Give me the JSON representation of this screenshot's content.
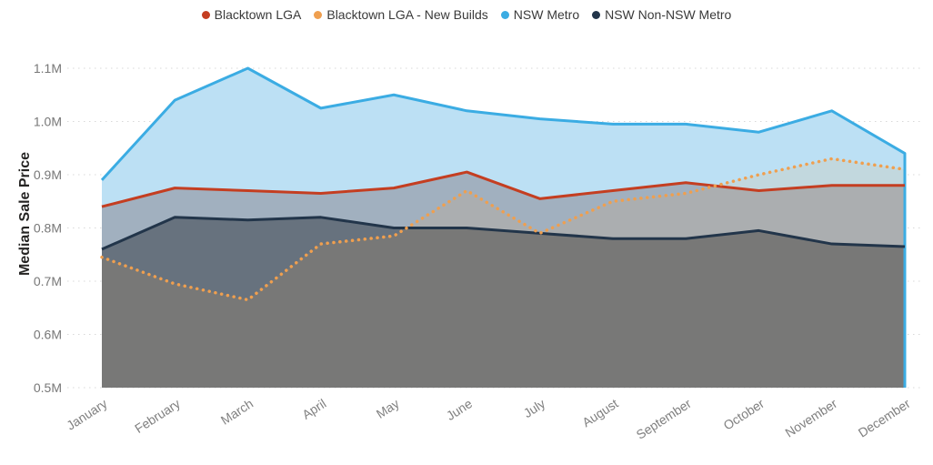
{
  "chart_data": {
    "type": "area",
    "title": "",
    "ylabel": "Median Sale Price",
    "legend_position": "top",
    "grid": "horizontal-dotted",
    "ylim": [
      0.5,
      1.1
    ],
    "y_ticks": [
      {
        "value": 0.5,
        "label": "0.5M"
      },
      {
        "value": 0.6,
        "label": "0.6M"
      },
      {
        "value": 0.7,
        "label": "0.7M"
      },
      {
        "value": 0.8,
        "label": "0.8M"
      },
      {
        "value": 0.9,
        "label": "0.9M"
      },
      {
        "value": 1.0,
        "label": "1.0M"
      },
      {
        "value": 1.1,
        "label": "1.1M"
      }
    ],
    "categories": [
      "January",
      "February",
      "March",
      "April",
      "May",
      "June",
      "July",
      "August",
      "September",
      "October",
      "November",
      "December"
    ],
    "unit": "M (AUD)",
    "series": [
      {
        "name": "Blacktown LGA",
        "color": "#c43e21",
        "fill": "#a1b0bf",
        "line_style": "solid",
        "values": [
          0.84,
          0.875,
          0.87,
          0.865,
          0.875,
          0.905,
          0.855,
          0.87,
          0.885,
          0.87,
          0.88,
          0.88
        ]
      },
      {
        "name": "Blacktown LGA - New Builds",
        "color": "#ef9f4f",
        "fill": "rgba(239,159,79,0.13)",
        "line_style": "dotted",
        "values": [
          0.745,
          0.695,
          0.665,
          0.77,
          0.785,
          0.87,
          0.79,
          0.85,
          0.865,
          0.9,
          0.93,
          0.91
        ]
      },
      {
        "name": "NSW Metro",
        "color": "#3bace3",
        "fill": "#bce0f4",
        "line_style": "solid",
        "values": [
          0.89,
          1.04,
          1.1,
          1.025,
          1.05,
          1.02,
          1.005,
          0.995,
          0.995,
          0.98,
          1.02,
          0.94
        ]
      },
      {
        "name": "NSW Non-NSW Metro",
        "color": "#22354a",
        "fill": "rgba(45,52,62,0.5)",
        "line_style": "solid",
        "values": [
          0.76,
          0.82,
          0.815,
          0.82,
          0.8,
          0.8,
          0.79,
          0.78,
          0.78,
          0.795,
          0.77,
          0.765
        ]
      }
    ],
    "gridline_color": "#d8d8d8"
  }
}
